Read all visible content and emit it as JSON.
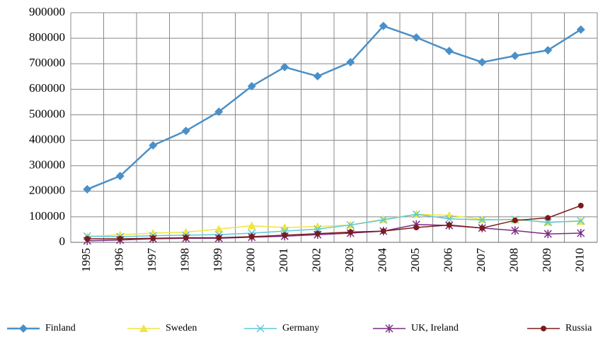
{
  "chart_data": {
    "type": "line",
    "categories": [
      "1995",
      "1996",
      "1997",
      "1998",
      "1999",
      "2000",
      "2001",
      "2002",
      "2003",
      "2004",
      "2005",
      "2006",
      "2007",
      "2008",
      "2009",
      "2010"
    ],
    "series": [
      {
        "name": "Finland",
        "color": "#4a90c8",
        "marker": "diamond",
        "values": [
          208000,
          260000,
          380000,
          437000,
          512000,
          612000,
          687000,
          651000,
          706000,
          848000,
          803000,
          750000,
          706000,
          731000,
          753000,
          834000
        ]
      },
      {
        "name": "Sweden",
        "color": "#f0e442",
        "marker": "triangle",
        "values": [
          22000,
          30000,
          36000,
          40000,
          52000,
          65000,
          58000,
          62000,
          68000,
          90000,
          110000,
          106000,
          90000,
          88000,
          80000,
          82000
        ]
      },
      {
        "name": "Germany",
        "color": "#5ec8d8",
        "marker": "x",
        "values": [
          24000,
          22000,
          26000,
          28000,
          30000,
          36000,
          44000,
          52000,
          68000,
          88000,
          110000,
          92000,
          88000,
          90000,
          78000,
          84000
        ]
      },
      {
        "name": "UK, Ireland",
        "color": "#7b2c83",
        "marker": "star",
        "values": [
          6000,
          9000,
          14000,
          16000,
          16000,
          20000,
          24000,
          30000,
          36000,
          44000,
          70000,
          66000,
          56000,
          46000,
          33000,
          36000
        ]
      },
      {
        "name": "Russia",
        "color": "#7b1c1c",
        "marker": "circle",
        "values": [
          14000,
          14000,
          16000,
          18000,
          18000,
          22000,
          28000,
          34000,
          40000,
          44000,
          58000,
          68000,
          56000,
          86000,
          96000,
          144000
        ]
      }
    ],
    "ylim": [
      0,
      900000
    ],
    "yticks": [
      0,
      100000,
      200000,
      300000,
      400000,
      500000,
      600000,
      700000,
      800000,
      900000
    ],
    "grid": true,
    "legend": "bottom"
  }
}
